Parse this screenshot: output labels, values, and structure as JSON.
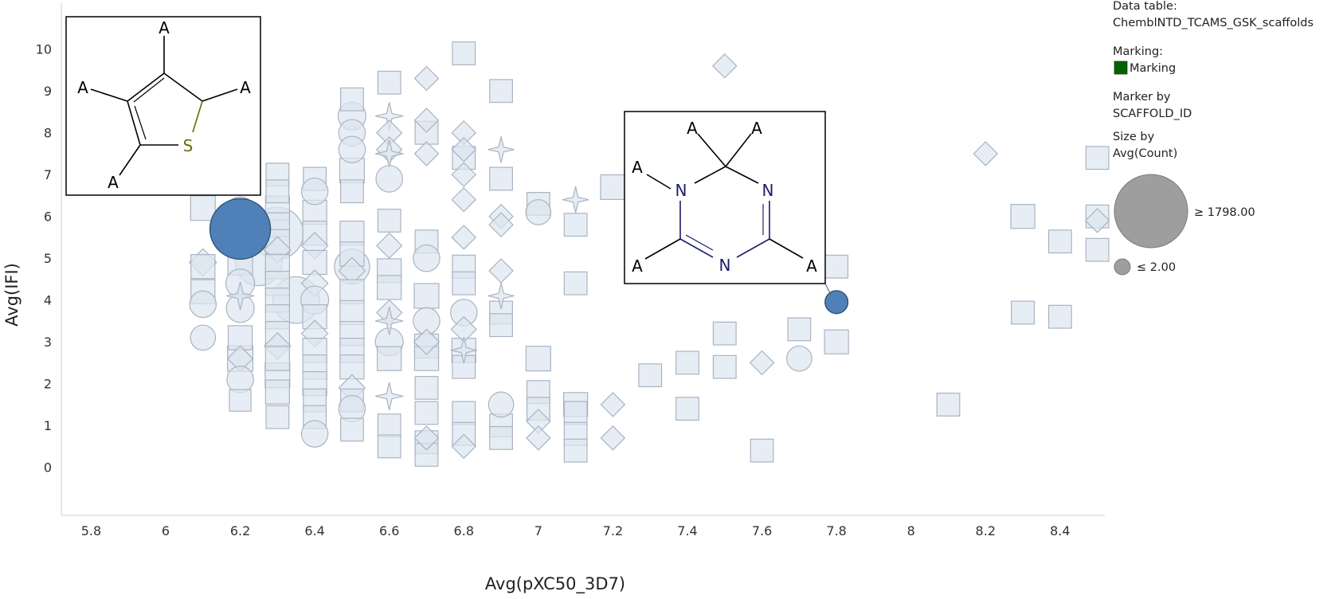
{
  "chart_data": {
    "type": "scatter",
    "xlabel": "Avg(pXC50_3D7)",
    "ylabel": "Avg(IFI)",
    "xlim": [
      5.72,
      8.52
    ],
    "ylim": [
      -1.15,
      11.1
    ],
    "xticks": [
      5.8,
      6,
      6.2,
      6.4,
      6.6,
      6.8,
      7,
      7.2,
      7.4,
      7.6,
      7.8,
      8,
      8.2,
      8.4
    ],
    "yticks": [
      0,
      1,
      2,
      3,
      4,
      5,
      6,
      7,
      8,
      9,
      10
    ],
    "grid": false,
    "colors": {
      "unmarked_fill": "#dde6f0",
      "unmarked_stroke": "#a9b4c2",
      "marked_fill": "#4f81b8",
      "marked_stroke": "#2f4f72"
    },
    "shape_glyphs": {
      "c": "circle",
      "s": "square",
      "d": "diamond",
      "t": "four-point-star"
    },
    "points": [
      [
        "c",
        6.2,
        5.7,
        1798,
        1
      ],
      [
        "c",
        7.8,
        3.95,
        80,
        1
      ],
      [
        "s",
        6.1,
        6.2,
        200,
        0
      ],
      [
        "d",
        6.1,
        4.9,
        200,
        0
      ],
      [
        "s",
        6.1,
        4.8,
        180,
        0
      ],
      [
        "s",
        6.1,
        4.2,
        180,
        0
      ],
      [
        "c",
        6.1,
        3.9,
        150,
        0
      ],
      [
        "c",
        6.1,
        3.1,
        120,
        0
      ],
      [
        "c",
        6.2,
        6.1,
        250,
        0
      ],
      [
        "s",
        6.2,
        4.9,
        200,
        0
      ],
      [
        "c",
        6.2,
        4.4,
        200,
        0
      ],
      [
        "t",
        6.2,
        4.1,
        150,
        0
      ],
      [
        "c",
        6.2,
        3.8,
        180,
        0
      ],
      [
        "s",
        6.2,
        3.1,
        180,
        0
      ],
      [
        "s",
        6.2,
        2.6,
        220,
        0
      ],
      [
        "d",
        6.2,
        2.6,
        150,
        0
      ],
      [
        "c",
        6.2,
        2.1,
        150,
        0
      ],
      [
        "s",
        6.2,
        1.6,
        120,
        0
      ],
      [
        "c",
        6.25,
        4.9,
        900,
        0
      ],
      [
        "c",
        6.3,
        5.6,
        1200,
        0
      ],
      [
        "c",
        6.35,
        4.0,
        900,
        0
      ],
      [
        "s",
        6.3,
        7.0,
        150,
        0
      ],
      [
        "s",
        6.3,
        6.6,
        150,
        0
      ],
      [
        "s",
        6.3,
        6.2,
        180,
        0
      ],
      [
        "s",
        6.3,
        5.8,
        180,
        0
      ],
      [
        "s",
        6.3,
        5.4,
        180,
        0
      ],
      [
        "d",
        6.3,
        5.2,
        180,
        0
      ],
      [
        "s",
        6.3,
        4.8,
        180,
        0
      ],
      [
        "s",
        6.3,
        4.4,
        180,
        0
      ],
      [
        "s",
        6.3,
        4.0,
        180,
        0
      ],
      [
        "s",
        6.3,
        3.6,
        180,
        0
      ],
      [
        "s",
        6.3,
        3.2,
        180,
        0
      ],
      [
        "d",
        6.3,
        2.9,
        180,
        0
      ],
      [
        "s",
        6.3,
        2.6,
        180,
        0
      ],
      [
        "s",
        6.3,
        2.2,
        200,
        0
      ],
      [
        "s",
        6.3,
        1.8,
        180,
        0
      ],
      [
        "s",
        6.3,
        1.2,
        150,
        0
      ],
      [
        "s",
        6.4,
        6.9,
        150,
        0
      ],
      [
        "c",
        6.4,
        6.6,
        150,
        0
      ],
      [
        "s",
        6.4,
        6.1,
        180,
        0
      ],
      [
        "s",
        6.4,
        5.6,
        180,
        0
      ],
      [
        "d",
        6.4,
        5.3,
        180,
        0
      ],
      [
        "s",
        6.4,
        4.9,
        180,
        0
      ],
      [
        "d",
        6.4,
        4.4,
        180,
        0
      ],
      [
        "c",
        6.4,
        4.0,
        180,
        0
      ],
      [
        "s",
        6.4,
        3.6,
        180,
        0
      ],
      [
        "d",
        6.4,
        3.2,
        180,
        0
      ],
      [
        "s",
        6.4,
        2.8,
        180,
        0
      ],
      [
        "s",
        6.4,
        2.4,
        180,
        0
      ],
      [
        "s",
        6.4,
        2.0,
        180,
        0
      ],
      [
        "s",
        6.4,
        1.6,
        150,
        0
      ],
      [
        "s",
        6.4,
        1.2,
        150,
        0
      ],
      [
        "c",
        6.4,
        0.8,
        150,
        0
      ],
      [
        "s",
        6.5,
        8.8,
        150,
        0
      ],
      [
        "c",
        6.5,
        8.4,
        180,
        0
      ],
      [
        "c",
        6.5,
        8.0,
        150,
        0
      ],
      [
        "c",
        6.5,
        7.6,
        150,
        0
      ],
      [
        "s",
        6.5,
        7.1,
        200,
        0
      ],
      [
        "s",
        6.5,
        6.6,
        150,
        0
      ],
      [
        "s",
        6.5,
        5.6,
        180,
        0
      ],
      [
        "s",
        6.5,
        5.1,
        180,
        0
      ],
      [
        "c",
        6.5,
        4.8,
        400,
        0
      ],
      [
        "d",
        6.5,
        4.7,
        180,
        0
      ],
      [
        "s",
        6.5,
        4.2,
        180,
        0
      ],
      [
        "s",
        6.5,
        3.7,
        180,
        0
      ],
      [
        "s",
        6.5,
        3.2,
        180,
        0
      ],
      [
        "s",
        6.5,
        2.8,
        180,
        0
      ],
      [
        "s",
        6.5,
        2.4,
        180,
        0
      ],
      [
        "d",
        6.5,
        1.9,
        180,
        0
      ],
      [
        "s",
        6.5,
        1.6,
        150,
        0
      ],
      [
        "c",
        6.5,
        1.4,
        150,
        0
      ],
      [
        "s",
        6.5,
        0.9,
        150,
        0
      ],
      [
        "s",
        6.6,
        9.2,
        150,
        0
      ],
      [
        "t",
        6.6,
        8.4,
        150,
        0
      ],
      [
        "d",
        6.6,
        8.0,
        150,
        0
      ],
      [
        "d",
        6.6,
        7.6,
        150,
        0
      ],
      [
        "t",
        6.6,
        7.5,
        150,
        0
      ],
      [
        "c",
        6.6,
        6.9,
        150,
        0
      ],
      [
        "s",
        6.6,
        5.9,
        150,
        0
      ],
      [
        "d",
        6.6,
        5.3,
        150,
        0
      ],
      [
        "s",
        6.6,
        4.7,
        180,
        0
      ],
      [
        "s",
        6.6,
        4.3,
        180,
        0
      ],
      [
        "d",
        6.6,
        3.7,
        150,
        0
      ],
      [
        "t",
        6.6,
        3.5,
        150,
        0
      ],
      [
        "c",
        6.6,
        3.0,
        180,
        0
      ],
      [
        "s",
        6.6,
        2.6,
        180,
        0
      ],
      [
        "t",
        6.6,
        1.7,
        150,
        0
      ],
      [
        "s",
        6.6,
        1.0,
        150,
        0
      ],
      [
        "s",
        6.6,
        0.5,
        150,
        0
      ],
      [
        "d",
        6.7,
        9.3,
        120,
        0
      ],
      [
        "d",
        6.7,
        8.3,
        120,
        0
      ],
      [
        "s",
        6.7,
        8.0,
        150,
        0
      ],
      [
        "d",
        6.7,
        7.5,
        120,
        0
      ],
      [
        "s",
        6.7,
        5.4,
        150,
        0
      ],
      [
        "c",
        6.7,
        5.0,
        150,
        0
      ],
      [
        "s",
        6.7,
        4.1,
        200,
        0
      ],
      [
        "c",
        6.7,
        3.5,
        150,
        0
      ],
      [
        "d",
        6.7,
        3.0,
        150,
        0
      ],
      [
        "s",
        6.7,
        2.9,
        180,
        0
      ],
      [
        "s",
        6.7,
        2.6,
        180,
        0
      ],
      [
        "s",
        6.7,
        1.9,
        150,
        0
      ],
      [
        "s",
        6.7,
        1.3,
        150,
        0
      ],
      [
        "d",
        6.7,
        0.7,
        120,
        0
      ],
      [
        "s",
        6.7,
        0.6,
        150,
        0
      ],
      [
        "s",
        6.7,
        0.3,
        150,
        0
      ],
      [
        "s",
        6.8,
        9.9,
        150,
        0
      ],
      [
        "d",
        6.8,
        8.0,
        120,
        0
      ],
      [
        "d",
        6.8,
        7.6,
        120,
        0
      ],
      [
        "s",
        6.8,
        7.4,
        150,
        0
      ],
      [
        "d",
        6.8,
        7.0,
        120,
        0
      ],
      [
        "d",
        6.8,
        6.4,
        120,
        0
      ],
      [
        "d",
        6.8,
        5.5,
        120,
        0
      ],
      [
        "s",
        6.8,
        4.8,
        150,
        0
      ],
      [
        "s",
        6.8,
        4.4,
        150,
        0
      ],
      [
        "c",
        6.8,
        3.7,
        150,
        0
      ],
      [
        "d",
        6.8,
        3.3,
        150,
        0
      ],
      [
        "s",
        6.8,
        2.8,
        180,
        0
      ],
      [
        "t",
        6.8,
        2.8,
        120,
        0
      ],
      [
        "s",
        6.8,
        2.4,
        150,
        0
      ],
      [
        "s",
        6.8,
        1.3,
        150,
        0
      ],
      [
        "s",
        6.8,
        0.8,
        150,
        0
      ],
      [
        "d",
        6.8,
        0.5,
        120,
        0
      ],
      [
        "s",
        6.9,
        9.0,
        150,
        0
      ],
      [
        "t",
        6.9,
        7.6,
        120,
        0
      ],
      [
        "s",
        6.9,
        6.9,
        150,
        0
      ],
      [
        "d",
        6.9,
        6.0,
        120,
        0
      ],
      [
        "d",
        6.9,
        5.8,
        120,
        0
      ],
      [
        "d",
        6.9,
        4.7,
        120,
        0
      ],
      [
        "t",
        6.9,
        4.1,
        120,
        0
      ],
      [
        "s",
        6.9,
        3.7,
        150,
        0
      ],
      [
        "s",
        6.9,
        3.4,
        150,
        0
      ],
      [
        "c",
        6.9,
        1.5,
        120,
        0
      ],
      [
        "s",
        6.9,
        1.0,
        150,
        0
      ],
      [
        "s",
        6.9,
        0.7,
        150,
        0
      ],
      [
        "s",
        7.0,
        6.3,
        150,
        0
      ],
      [
        "c",
        7.0,
        6.1,
        120,
        0
      ],
      [
        "s",
        7.0,
        2.6,
        200,
        0
      ],
      [
        "s",
        7.0,
        1.8,
        150,
        0
      ],
      [
        "s",
        7.0,
        1.4,
        150,
        0
      ],
      [
        "d",
        7.0,
        1.1,
        120,
        0
      ],
      [
        "d",
        7.0,
        0.7,
        120,
        0
      ],
      [
        "t",
        7.1,
        6.4,
        120,
        0
      ],
      [
        "s",
        7.1,
        5.8,
        150,
        0
      ],
      [
        "s",
        7.1,
        4.4,
        150,
        0
      ],
      [
        "s",
        7.1,
        1.5,
        180,
        0
      ],
      [
        "s",
        7.1,
        1.3,
        150,
        0
      ],
      [
        "s",
        7.1,
        0.8,
        150,
        0
      ],
      [
        "s",
        7.1,
        0.4,
        150,
        0
      ],
      [
        "s",
        7.2,
        6.7,
        200,
        0
      ],
      [
        "d",
        7.2,
        1.5,
        120,
        0
      ],
      [
        "d",
        7.2,
        0.7,
        120,
        0
      ],
      [
        "s",
        7.3,
        2.2,
        150,
        0
      ],
      [
        "s",
        7.4,
        2.5,
        150,
        0
      ],
      [
        "s",
        7.4,
        1.4,
        150,
        0
      ],
      [
        "d",
        7.5,
        9.6,
        120,
        0
      ],
      [
        "s",
        7.5,
        3.2,
        150,
        0
      ],
      [
        "s",
        7.5,
        2.4,
        150,
        0
      ],
      [
        "d",
        7.6,
        2.5,
        120,
        0
      ],
      [
        "s",
        7.6,
        0.4,
        150,
        0
      ],
      [
        "s",
        7.7,
        3.3,
        150,
        0
      ],
      [
        "c",
        7.7,
        2.6,
        120,
        0
      ],
      [
        "s",
        7.8,
        4.8,
        150,
        0
      ],
      [
        "s",
        7.8,
        3.0,
        180,
        0
      ],
      [
        "s",
        8.1,
        1.5,
        150,
        0
      ],
      [
        "d",
        8.2,
        7.5,
        120,
        0
      ],
      [
        "s",
        8.3,
        6.0,
        180,
        0
      ],
      [
        "s",
        8.3,
        3.7,
        150,
        0
      ],
      [
        "s",
        8.4,
        5.4,
        150,
        0
      ],
      [
        "s",
        8.4,
        3.6,
        150,
        0
      ],
      [
        "s",
        8.5,
        7.4,
        150,
        0
      ],
      [
        "s",
        8.5,
        6.0,
        150,
        0
      ],
      [
        "d",
        8.5,
        5.9,
        120,
        0
      ],
      [
        "s",
        8.5,
        5.2,
        150,
        0
      ]
    ]
  },
  "structures": {
    "thiophene": {
      "substituent": "A",
      "hetero_atom": "S",
      "atom_color": "#6b6b00"
    },
    "triazine": {
      "substituent": "A",
      "hetero_atom": "N",
      "atom_color": "#1d1d6b"
    }
  },
  "legend": {
    "data_table_label": "Data table:",
    "data_table_value": "ChemblNTD_TCAMS_GSK_scaffolds",
    "marking_label": "Marking:",
    "marking_value": "Marking",
    "marking_color": "#006400",
    "marker_by_label": "Marker by",
    "marker_by_value": "SCAFFOLD_ID",
    "size_by_label": "Size by",
    "size_by_value": "Avg(Count)",
    "size_max_label": "≥ 1798.00",
    "size_min_label": "≤ 2.00",
    "size_swatch_color": "#9e9e9e"
  }
}
